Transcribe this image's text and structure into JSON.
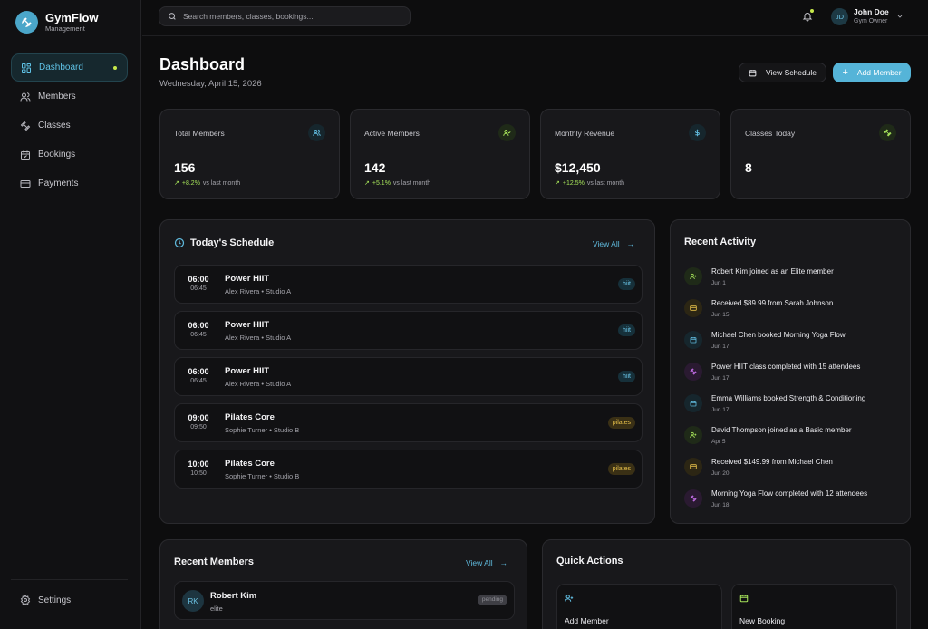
{
  "brand": {
    "name": "GymFlow",
    "subtitle": "Management"
  },
  "nav": {
    "items": [
      {
        "label": "Dashboard",
        "icon": "dashboard-icon",
        "active": true
      },
      {
        "label": "Members",
        "icon": "users-icon"
      },
      {
        "label": "Classes",
        "icon": "dumbbell-icon"
      },
      {
        "label": "Bookings",
        "icon": "calendar-check-icon"
      },
      {
        "label": "Payments",
        "icon": "credit-card-icon"
      }
    ],
    "settings_label": "Settings"
  },
  "topbar": {
    "search_placeholder": "Search members, classes, bookings...",
    "user": {
      "initials": "JD",
      "name": "John Doe",
      "role": "Gym Owner"
    }
  },
  "header": {
    "title": "Dashboard",
    "date": "Wednesday, April 15, 2026",
    "view_schedule_label": "View Schedule",
    "add_member_label": "Add Member"
  },
  "stats": [
    {
      "label": "Total Members",
      "value": "156",
      "trend": "+8.2%",
      "trend_suffix": "vs last month",
      "icon": "users-icon",
      "color": "#5fb9dc"
    },
    {
      "label": "Active Members",
      "value": "142",
      "trend": "+5.1%",
      "trend_suffix": "vs last month",
      "icon": "user-check-icon",
      "color": "#a6e35a"
    },
    {
      "label": "Monthly Revenue",
      "value": "$12,450",
      "trend": "+12.5%",
      "trend_suffix": "vs last month",
      "icon": "dollar-icon",
      "color": "#5fb9dc"
    },
    {
      "label": "Classes Today",
      "value": "8",
      "icon": "dumbbell-icon",
      "color": "#a6e35a"
    }
  ],
  "schedule": {
    "title": "Today's Schedule",
    "view_all": "View All",
    "items": [
      {
        "start": "06:00",
        "end": "06:45",
        "name": "Power HIIT",
        "meta": "Alex Rivera • Studio A",
        "tag": "hiit"
      },
      {
        "start": "06:00",
        "end": "06:45",
        "name": "Power HIIT",
        "meta": "Alex Rivera • Studio A",
        "tag": "hiit"
      },
      {
        "start": "06:00",
        "end": "06:45",
        "name": "Power HIIT",
        "meta": "Alex Rivera • Studio A",
        "tag": "hiit"
      },
      {
        "start": "09:00",
        "end": "09:50",
        "name": "Pilates Core",
        "meta": "Sophie Turner • Studio B",
        "tag": "pilates"
      },
      {
        "start": "10:00",
        "end": "10:50",
        "name": "Pilates Core",
        "meta": "Sophie Turner • Studio B",
        "tag": "pilates"
      }
    ]
  },
  "activity": {
    "title": "Recent Activity",
    "items": [
      {
        "text": "Robert Kim joined as an Elite member",
        "date": "Jun 1",
        "icon": "user-plus-icon",
        "color": "#a6e35a",
        "bg": "#1f2a18"
      },
      {
        "text": "Received $89.99 from Sarah Johnson",
        "date": "Jun 15",
        "icon": "credit-card-icon",
        "color": "#e7c04a",
        "bg": "#2c2614"
      },
      {
        "text": "Michael Chen booked Morning Yoga Flow",
        "date": "Jun 17",
        "icon": "calendar-icon",
        "color": "#5fb9dc",
        "bg": "#16262d"
      },
      {
        "text": "Power HIIT class completed with 15 attendees",
        "date": "Jun 17",
        "icon": "dumbbell-icon",
        "color": "#c46ee8",
        "bg": "#2a1a31"
      },
      {
        "text": "Emma Williams booked Strength & Conditioning",
        "date": "Jun 17",
        "icon": "calendar-icon",
        "color": "#5fb9dc",
        "bg": "#16262d"
      },
      {
        "text": "David Thompson joined as a Basic member",
        "date": "Apr 5",
        "icon": "user-plus-icon",
        "color": "#a6e35a",
        "bg": "#1f2a18"
      },
      {
        "text": "Received $149.99 from Michael Chen",
        "date": "Jun 20",
        "icon": "credit-card-icon",
        "color": "#e7c04a",
        "bg": "#2c2614"
      },
      {
        "text": "Morning Yoga Flow completed with 12 attendees",
        "date": "Jun 18",
        "icon": "dumbbell-icon",
        "color": "#c46ee8",
        "bg": "#2a1a31"
      }
    ]
  },
  "recent_members": {
    "title": "Recent Members",
    "view_all": "View All",
    "items": [
      {
        "initials": "RK",
        "name": "Robert Kim",
        "plan": "elite",
        "status": "pending"
      }
    ]
  },
  "quick_actions": {
    "title": "Quick Actions",
    "items": [
      {
        "label": "Add Member",
        "icon": "user-plus-icon",
        "color": "#5fb9dc"
      },
      {
        "label": "New Booking",
        "icon": "calendar-icon",
        "color": "#a6e35a"
      }
    ]
  },
  "colors": {
    "accent": "#55b4d8",
    "lime": "#a6e35a",
    "background": "#0d0d0e"
  }
}
